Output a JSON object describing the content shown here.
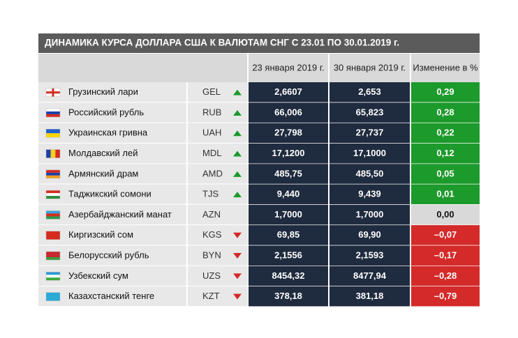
{
  "title": "ДИНАМИКА КУРСА ДОЛЛАРА США К ВАЛЮТАМ СНГ С 23.01 ПО 30.01.2019 г.",
  "table": {
    "columns": [
      "23 января 2019 г.",
      "30 января 2019 г.",
      "Изменение в %"
    ],
    "rows": [
      {
        "name": "Грузинский лари",
        "code": "GEL",
        "trend": "up",
        "v1": "2,6607",
        "v2": "2,653",
        "change": "0,29"
      },
      {
        "name": "Российский рубль",
        "code": "RUB",
        "trend": "up",
        "v1": "66,006",
        "v2": "65,823",
        "change": "0,28"
      },
      {
        "name": "Украинская гривна",
        "code": "UAH",
        "trend": "up",
        "v1": "27,798",
        "v2": "27,737",
        "change": "0,22"
      },
      {
        "name": "Молдавский лей",
        "code": "MDL",
        "trend": "up",
        "v1": "17,1200",
        "v2": "17,1000",
        "change": "0,12"
      },
      {
        "name": "Армянский драм",
        "code": "AMD",
        "trend": "up",
        "v1": "485,75",
        "v2": "485,50",
        "change": "0,05"
      },
      {
        "name": "Таджикский сомони",
        "code": "TJS",
        "trend": "up",
        "v1": "9,440",
        "v2": "9,439",
        "change": "0,01"
      },
      {
        "name": "Азербайджанский манат",
        "code": "AZN",
        "trend": "flat",
        "v1": "1,7000",
        "v2": "1,7000",
        "change": "0,00"
      },
      {
        "name": "Киргизский сом",
        "code": "KGS",
        "trend": "down",
        "v1": "69,85",
        "v2": "69,90",
        "change": "–0,07"
      },
      {
        "name": "Белорусский рубль",
        "code": "BYN",
        "trend": "down",
        "v1": "2,1556",
        "v2": "2,1593",
        "change": "–0,17"
      },
      {
        "name": "Узбекский сум",
        "code": "UZS",
        "trend": "down",
        "v1": "8454,32",
        "v2": "8477,94",
        "change": "–0,28"
      },
      {
        "name": "Казахстанский тенге",
        "code": "KZT",
        "trend": "down",
        "v1": "378,18",
        "v2": "381,18",
        "change": "–0,79"
      }
    ]
  }
}
